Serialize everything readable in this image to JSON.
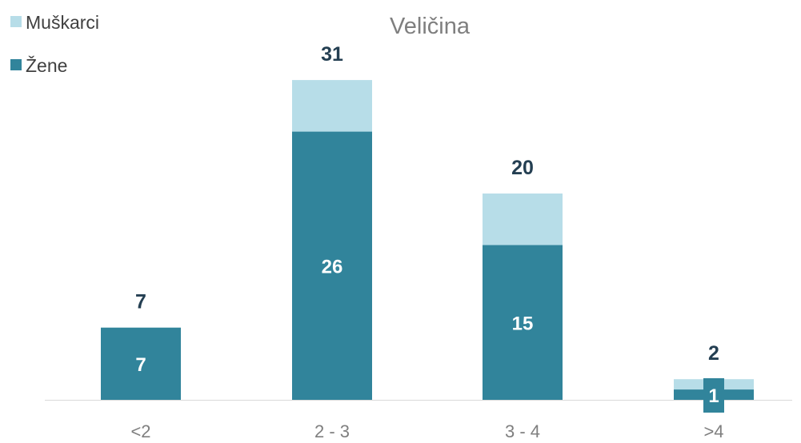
{
  "chart_data": {
    "type": "bar",
    "stacked": true,
    "title": "Veličina",
    "categories": [
      "<2",
      "2 - 3",
      "3 - 4",
      ">4"
    ],
    "series": [
      {
        "name": "Žene",
        "values": [
          7,
          26,
          15,
          1
        ],
        "color": "#31849b"
      },
      {
        "name": "Muškarci",
        "values": [
          0,
          5,
          5,
          1
        ],
        "color": "#b7dde8"
      }
    ],
    "totals": [
      7,
      31,
      20,
      2
    ],
    "data_labels": [
      {
        "category": "<2",
        "zene": "7",
        "total": "7"
      },
      {
        "category": "2 - 3",
        "zene": "26",
        "total": "31"
      },
      {
        "category": "3 - 4",
        "zene": "15",
        "total": "20"
      },
      {
        "category": ">4",
        "zene": "1",
        "total": "2"
      }
    ],
    "legend": {
      "position": "top-left",
      "entries": [
        {
          "name": "Muškarci",
          "color": "#b7dde8"
        },
        {
          "name": "Žene",
          "color": "#31849b"
        }
      ]
    },
    "xlabel": "",
    "ylabel": "",
    "ylim": [
      0,
      31
    ],
    "grid": false,
    "colors": {
      "axis": "#d9d9d9",
      "total_label": "#243f52",
      "inner_label": "#ffffff",
      "title": "#7f7f7f",
      "tick": "#7f7f7f"
    }
  }
}
